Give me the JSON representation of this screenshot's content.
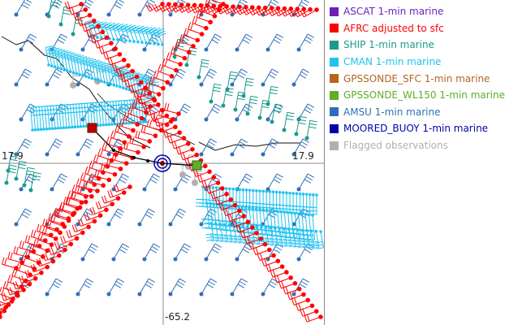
{
  "map": {
    "coord_left": "17.9",
    "coord_right": "17.9",
    "coord_bottom": "-65.2"
  },
  "legend": {
    "items": [
      {
        "label": "ASCAT 1-min marine",
        "color": "#6f1fb8"
      },
      {
        "label": "AFRC adjusted to sfc",
        "color": "#ff0000"
      },
      {
        "label": "SHIP 1-min marine",
        "color": "#1a9b8c"
      },
      {
        "label": "CMAN 1-min marine",
        "color": "#22c2ee"
      },
      {
        "label": "GPSSONDE_SFC 1-min marine",
        "color": "#b5651d"
      },
      {
        "label": "GPSSONDE_WL150 1-min marine",
        "color": "#5fae25"
      },
      {
        "label": "AMSU 1-min marine",
        "color": "#2f6fb7"
      },
      {
        "label": "MOORED_BUOY 1-min marine",
        "color": "#0000aa"
      },
      {
        "label": "Flagged observations",
        "color": "#b0b0b0"
      }
    ]
  }
}
